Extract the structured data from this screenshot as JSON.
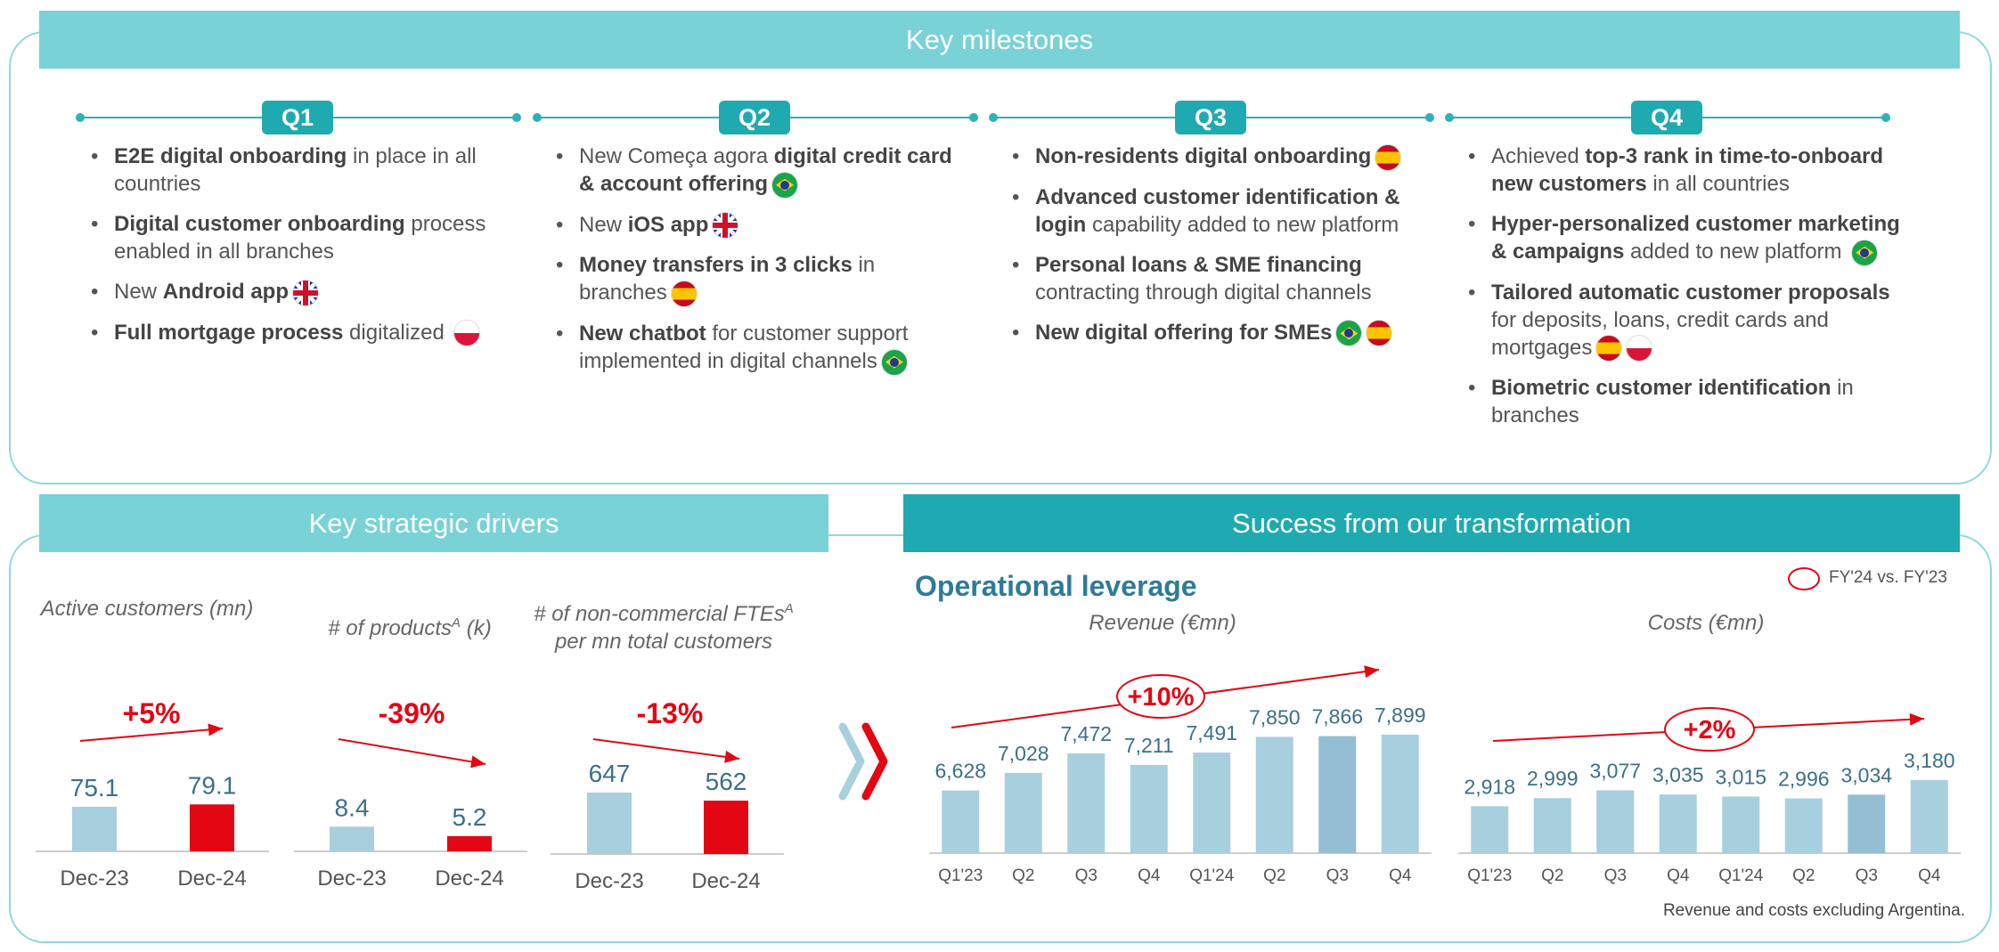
{
  "milestones": {
    "title": "Key milestones",
    "quarters": [
      {
        "label": "Q1",
        "items": [
          [
            {
              "t": "E2E digital onboarding",
              "b": true
            },
            {
              "t": " in place in all countries"
            }
          ],
          [
            {
              "t": "Digital customer onboarding",
              "b": true
            },
            {
              "t": " process enabled in all branches"
            }
          ],
          [
            {
              "t": "New "
            },
            {
              "t": "Android app",
              "b": true
            },
            {
              "f": "uk"
            }
          ],
          [
            {
              "t": "Full mortgage process",
              "b": true
            },
            {
              "t": " digitalized "
            },
            {
              "f": "pl"
            }
          ]
        ]
      },
      {
        "label": "Q2",
        "items": [
          [
            {
              "t": "New Começa agora "
            },
            {
              "t": "digital credit card & account offering",
              "b": true
            },
            {
              "f": "br"
            }
          ],
          [
            {
              "t": "New "
            },
            {
              "t": "iOS app",
              "b": true
            },
            {
              "f": "uk"
            }
          ],
          [
            {
              "t": "Money transfers in 3 clicks",
              "b": true
            },
            {
              "t": " in branches"
            },
            {
              "f": "es"
            }
          ],
          [
            {
              "t": "New chatbot",
              "b": true
            },
            {
              "t": "  for customer support implemented in digital channels"
            },
            {
              "f": "br"
            }
          ]
        ]
      },
      {
        "label": "Q3",
        "items": [
          [
            {
              "t": "Non-residents digital onboarding",
              "b": true
            },
            {
              "f": "es"
            }
          ],
          [
            {
              "t": "Advanced customer identification & login",
              "b": true
            },
            {
              "t": " capability added to new platform"
            }
          ],
          [
            {
              "t": "Personal loans & SME financing",
              "b": true
            },
            {
              "t": " contracting through digital channels"
            }
          ],
          [
            {
              "t": "New digital offering for SMEs",
              "b": true
            },
            {
              "f": "br"
            },
            {
              "f": "es"
            }
          ]
        ]
      },
      {
        "label": "Q4",
        "items": [
          [
            {
              "t": "Achieved "
            },
            {
              "t": "top-3 rank in time-to-onboard new customers",
              "b": true
            },
            {
              "t": " in all countries"
            }
          ],
          [
            {
              "t": "Hyper-personalized customer marketing & campaigns",
              "b": true
            },
            {
              "t": " added to new platform "
            },
            {
              "f": "br"
            }
          ],
          [
            {
              "t": "Tailored automatic customer proposals",
              "b": true
            },
            {
              "t": " for deposits, loans, credit cards and mortgages"
            },
            {
              "f": "es"
            },
            {
              "f": "pl"
            }
          ],
          [
            {
              "t": "Biometric customer identification",
              "b": true
            },
            {
              "t": " in branches"
            }
          ]
        ]
      }
    ]
  },
  "drivers": {
    "title": "Key strategic drivers",
    "charts": [
      {
        "title": "Active customers (mn)",
        "categories": [
          "Dec-23",
          "Dec-24"
        ],
        "values": [
          75.1,
          79.1
        ],
        "labels": [
          "75.1",
          "79.1"
        ],
        "change": "+5%"
      },
      {
        "title": "# of products",
        "superscript": "A",
        "unit": " (k)",
        "categories": [
          "Dec-23",
          "Dec-24"
        ],
        "values": [
          8.4,
          5.2
        ],
        "labels": [
          "8.4",
          "5.2"
        ],
        "change": "-39%"
      },
      {
        "title": "# of non-commercial FTEs",
        "superscript": "A",
        "title2": "per mn total customers",
        "categories": [
          "Dec-23",
          "Dec-24"
        ],
        "values": [
          647,
          562
        ],
        "labels": [
          "647",
          "562"
        ],
        "change": "-13%"
      }
    ]
  },
  "success": {
    "title": "Success from our transformation",
    "subtitle": "Operational leverage",
    "legend": "FY'24 vs. FY'23",
    "footnote": "Revenue and costs excluding Argentina."
  },
  "chart_data": [
    {
      "type": "bar",
      "title": "Revenue (€mn)",
      "categories": [
        "Q1'23",
        "Q2",
        "Q3",
        "Q4",
        "Q1'24",
        "Q2",
        "Q3",
        "Q4"
      ],
      "values": [
        6628,
        7028,
        7472,
        7211,
        7491,
        7850,
        7866,
        7899
      ],
      "labels": [
        "6,628",
        "7,028",
        "7,472",
        "7,211",
        "7,491",
        "7,850",
        "7,866",
        "7,899"
      ],
      "change": "+10%",
      "ylim": [
        5200,
        8000
      ]
    },
    {
      "type": "bar",
      "title": "Costs (€mn)",
      "categories": [
        "Q1'23",
        "Q2",
        "Q3",
        "Q4",
        "Q1'24",
        "Q2",
        "Q3",
        "Q4"
      ],
      "values": [
        2918,
        2999,
        3077,
        3035,
        3015,
        2996,
        3034,
        3180
      ],
      "labels": [
        "2,918",
        "2,999",
        "3,077",
        "3,035",
        "3,015",
        "2,996",
        "3,034",
        "3,180"
      ],
      "change": "+2%",
      "ylim": [
        2450,
        3250
      ]
    }
  ],
  "colors": {
    "teal_light": "#79d2d6",
    "teal_dark": "#1faab2",
    "bar_blue": "#a8cfde",
    "bar_blue_dark": "#94bfd2",
    "red": "#e30613"
  }
}
